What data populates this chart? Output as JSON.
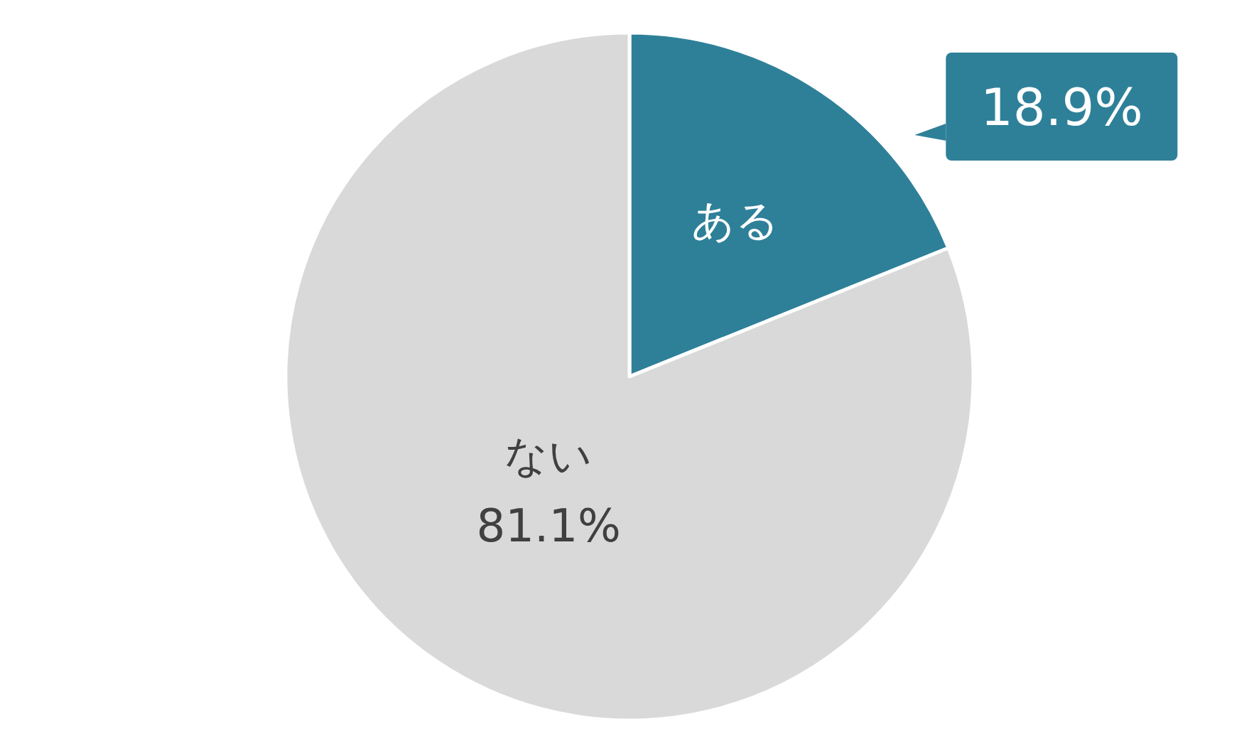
{
  "chart_data": {
    "type": "pie",
    "categories": [
      "ある",
      "ない"
    ],
    "values": [
      18.9,
      81.1
    ],
    "colors": [
      "#2e8099",
      "#d9d9d9"
    ],
    "value_labels": [
      "18.9%",
      "81.1%"
    ]
  }
}
